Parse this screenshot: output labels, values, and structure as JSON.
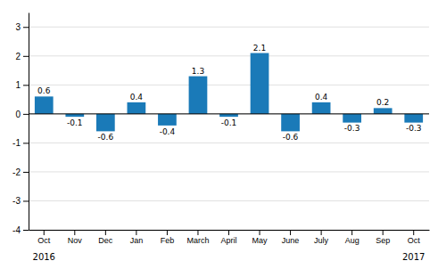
{
  "chart_data": {
    "type": "bar",
    "categories": [
      "Oct",
      "Nov",
      "Dec",
      "Jan",
      "Feb",
      "March",
      "April",
      "May",
      "June",
      "July",
      "Aug",
      "Sep",
      "Oct"
    ],
    "values": [
      0.6,
      -0.1,
      -0.6,
      0.4,
      -0.4,
      1.3,
      -0.1,
      2.1,
      -0.6,
      0.4,
      -0.3,
      0.2,
      -0.3
    ],
    "color": "#1a7ab8",
    "ylim": [
      -4,
      3.5
    ],
    "yticks": [
      -4,
      -3,
      -2,
      -1,
      0,
      1,
      2,
      3
    ],
    "grid": true,
    "data_labels": true,
    "annotations": [
      {
        "text": "2016",
        "category": 0
      },
      {
        "text": "2017",
        "category": 12
      }
    ]
  }
}
